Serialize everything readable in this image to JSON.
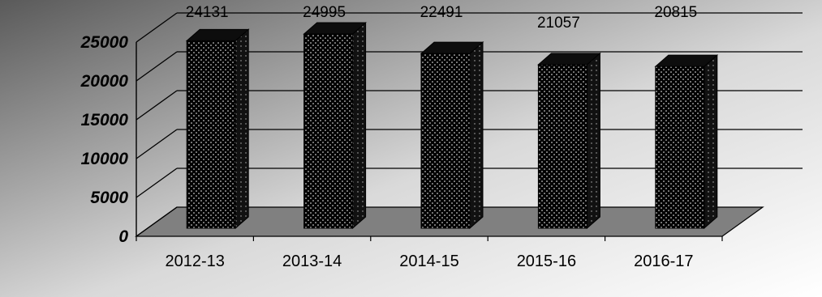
{
  "chart_data": {
    "type": "bar",
    "style": "3d-column",
    "categories": [
      "2012-13",
      "2013-14",
      "2014-15",
      "2015-16",
      "2016-17"
    ],
    "values": [
      24131,
      24995,
      22491,
      21057,
      20815
    ],
    "data_labels": [
      "24131",
      "24995",
      "22491",
      "21057",
      "20815"
    ],
    "yticks": [
      "0",
      "5000",
      "10000",
      "15000",
      "20000",
      "25000"
    ],
    "ylim": [
      0,
      25000
    ],
    "grid": true,
    "legend": "none",
    "title": "",
    "xlabel": "",
    "ylabel": "",
    "colors": {
      "bar_front": "#000000",
      "bar_dots": "#ffffff",
      "bar_side": "#1a1a1a",
      "bar_top": "#0d0d0d",
      "floor": "#808080",
      "gridline": "#000000",
      "background_dark": "#5f5f5f",
      "background_light": "#ffffff"
    }
  }
}
